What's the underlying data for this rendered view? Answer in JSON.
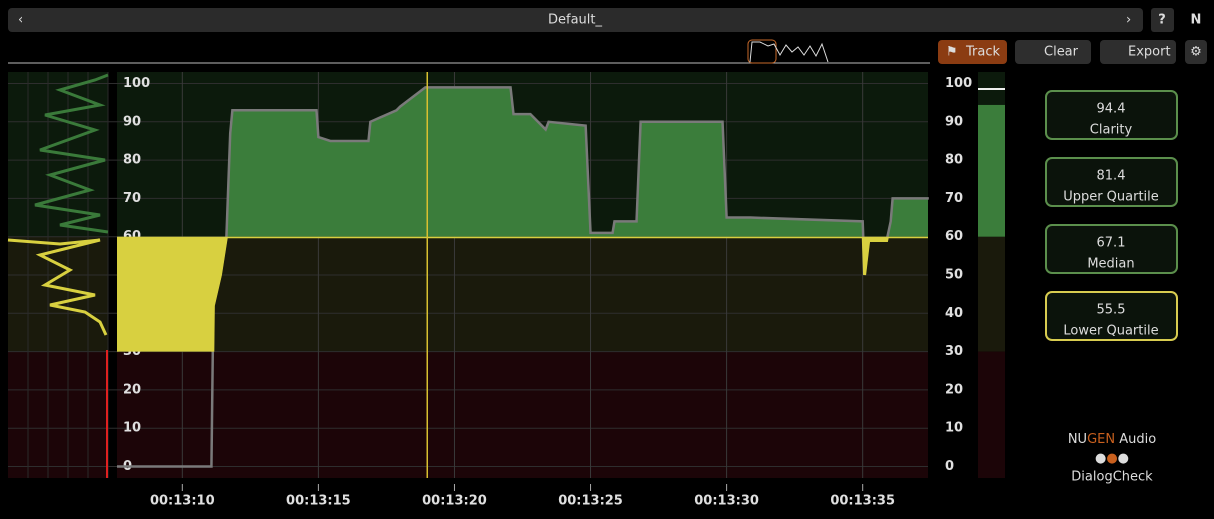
{
  "toolbar": {
    "preset": "Default_",
    "help": "?",
    "logo": "N"
  },
  "buttons": {
    "track": "Track",
    "clear": "Clear",
    "export": "Export"
  },
  "chart": {
    "ylim": [
      -3,
      103
    ],
    "yticks": [
      0,
      10,
      20,
      30,
      40,
      50,
      60,
      70,
      80,
      90,
      100
    ],
    "zones": [
      30,
      60
    ],
    "xlim": [
      787.6,
      817.4
    ],
    "xticks": [
      {
        "value": 790,
        "label": "00:13:10"
      },
      {
        "value": 795,
        "label": "00:13:15"
      },
      {
        "value": 800,
        "label": "00:13:20"
      },
      {
        "value": 805,
        "label": "00:13:25"
      },
      {
        "value": 810,
        "label": "00:13:30"
      },
      {
        "value": 815,
        "label": "00:13:35"
      }
    ],
    "playhead": 799,
    "x": [
      787.6,
      791.07,
      791.14,
      791.4,
      791.62,
      791.76,
      791.84,
      794.93,
      795.0,
      795.44,
      796.84,
      796.91,
      797.87,
      798.01,
      798.93,
      802.06,
      802.17,
      802.79,
      803.35,
      803.46,
      804.82,
      805.0,
      805.81,
      805.88,
      806.69,
      806.84,
      809.85,
      810.0,
      810.88,
      815.0,
      815.07,
      815.22,
      815.88,
      816.03,
      816.1,
      817.43
    ],
    "values": [
      0,
      0,
      42,
      50,
      60,
      87,
      93,
      93,
      86,
      85,
      85,
      90,
      93,
      94,
      99,
      99,
      92,
      92,
      88,
      90,
      89,
      61,
      61,
      64,
      64,
      90,
      90,
      65,
      65,
      64,
      50,
      59,
      59,
      64,
      70,
      70
    ]
  },
  "readouts": [
    {
      "value": 94.4,
      "label": "Clarity"
    },
    {
      "value": 81.4,
      "label": "Upper Quartile"
    },
    {
      "value": 67.1,
      "label": "Median"
    },
    {
      "value": 55.5,
      "label": "Lower Quartile"
    }
  ],
  "brand": {
    "maker_a": "NU",
    "maker_b": "GEN",
    "maker_c": "Audio",
    "product": "DialogCheck"
  }
}
